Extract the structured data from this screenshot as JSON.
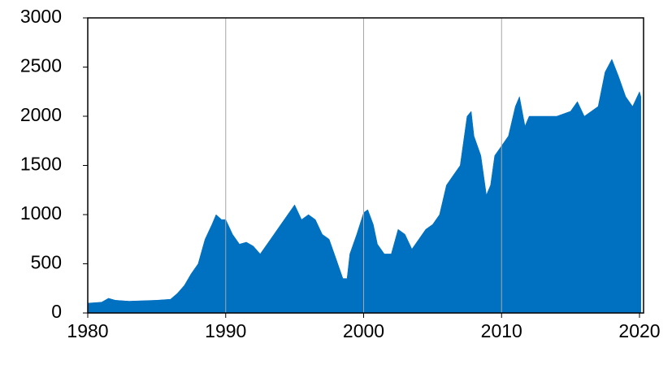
{
  "chart_data": {
    "type": "area",
    "color": "#0070c0",
    "grid": "x",
    "x": [
      1980,
      1981,
      1981.5,
      1982,
      1983,
      1984,
      1985,
      1986,
      1986.5,
      1987,
      1987.5,
      1988,
      1988.5,
      1989,
      1989.3,
      1989.7,
      1990,
      1990.5,
      1991,
      1991.5,
      1992,
      1992.5,
      1993,
      1993.5,
      1994,
      1994.5,
      1995,
      1995.5,
      1996,
      1996.5,
      1997,
      1997.5,
      1998,
      1998.5,
      1998.8,
      1999,
      1999.5,
      2000,
      2000.3,
      2000.7,
      2001,
      2001.5,
      2002,
      2002.5,
      2003,
      2003.5,
      2004,
      2004.5,
      2005,
      2005.5,
      2006,
      2006.5,
      2007,
      2007.5,
      2007.8,
      2008,
      2008.5,
      2008.9,
      2009.2,
      2009.5,
      2010,
      2010.5,
      2011,
      2011.3,
      2011.7,
      2012,
      2013,
      2014,
      2015,
      2015.5,
      2016,
      2017,
      2017.5,
      2018,
      2018.5,
      2019,
      2019.5,
      2020,
      2020.1
    ],
    "values": [
      100,
      110,
      150,
      130,
      120,
      125,
      130,
      140,
      200,
      280,
      400,
      500,
      750,
      900,
      1000,
      950,
      950,
      800,
      700,
      720,
      680,
      600,
      700,
      800,
      900,
      1000,
      1100,
      950,
      1000,
      950,
      800,
      750,
      550,
      350,
      350,
      600,
      800,
      1020,
      1050,
      900,
      700,
      600,
      600,
      850,
      800,
      650,
      750,
      850,
      900,
      1000,
      1300,
      1400,
      1500,
      2000,
      2050,
      1800,
      1600,
      1200,
      1300,
      1600,
      1700,
      1800,
      2100,
      2200,
      1900,
      2000,
      2000,
      2000,
      2050,
      2150,
      2000,
      2100,
      2450,
      2580,
      2400,
      2200,
      2100,
      2250,
      2200
    ],
    "xlim": [
      1980,
      2020
    ],
    "xticks": [
      1980,
      1990,
      2000,
      2010,
      2020
    ],
    "ylim": [
      0,
      3000
    ],
    "yticks": [
      0,
      500,
      1000,
      1500,
      2000,
      2500,
      3000
    ]
  }
}
